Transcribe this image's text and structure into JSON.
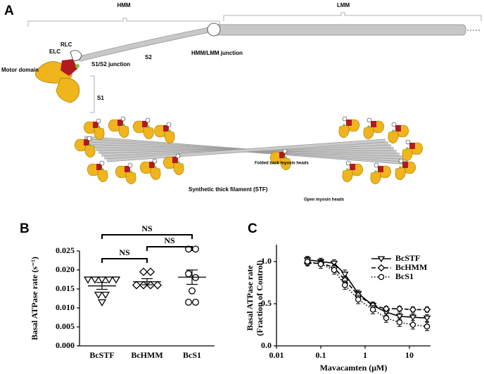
{
  "panel_labels": [
    "A",
    "B",
    "C"
  ],
  "diagram": {
    "labels": [
      "HMM",
      "LMM",
      "RLC",
      "ELC",
      "Motor domain",
      "S1/S2 junction",
      "S2",
      "HMM/LMM junction",
      "S1",
      "Folded back myosin heads",
      "Synthetic thick filament (STF)",
      "Open myosin heads"
    ]
  },
  "chart_data": [
    {
      "type": "dot",
      "y_label": "Basal ATPase rate (s⁻¹)",
      "categories": [
        "BcSTF",
        "BcHMM",
        "BcS1"
      ],
      "markers": [
        "triangle-down",
        "diamond",
        "circle"
      ],
      "groups": [
        [
          0.0175,
          0.0175,
          0.0175,
          0.0175,
          0.0175,
          0.0135,
          0.0135,
          0.0115
        ],
        [
          0.0195,
          0.0195,
          0.016,
          0.016,
          0.016,
          0.016
        ],
        [
          0.0255,
          0.0255,
          0.019,
          0.018,
          0.0145,
          0.0115,
          0.0115
        ]
      ],
      "means": [
        0.0158,
        0.0169,
        0.0181
      ],
      "errors": [
        0.0009,
        0.0008,
        0.0019
      ],
      "comparisons": [
        {
          "label": "NS",
          "pair": [
            0,
            1
          ]
        },
        {
          "label": "NS",
          "pair": [
            1,
            2
          ]
        },
        {
          "label": "NS",
          "pair": [
            0,
            2
          ]
        }
      ],
      "ylim": [
        0,
        0.025
      ],
      "yticks": [
        {
          "value": 0,
          "label": "0.000"
        },
        {
          "value": 0.005,
          "label": "0.005"
        },
        {
          "value": 0.01,
          "label": "0.010"
        },
        {
          "value": 0.015,
          "label": "0.015"
        },
        {
          "value": 0.02,
          "label": "0.020"
        },
        {
          "value": 0.025,
          "label": "0.025"
        }
      ]
    },
    {
      "type": "line",
      "log_x": true,
      "x_label": "Mavacamten (μM)",
      "y_label": [
        "Basal ATPase rate",
        "(Fraction of Control)"
      ],
      "x": [
        0.05,
        0.1,
        0.2,
        0.35,
        0.7,
        1.5,
        3,
        6,
        12,
        25
      ],
      "series": [
        {
          "name": "BcSTF",
          "marker": "triangle-down",
          "dash": "solid",
          "values": [
            1.02,
            1.0,
            0.98,
            0.85,
            0.62,
            0.48,
            0.4,
            0.35,
            0.34,
            0.33
          ],
          "errors": [
            0.04,
            0.04,
            0.04,
            0.05,
            0.04,
            0.04,
            0.04,
            0.04,
            0.04,
            0.04
          ]
        },
        {
          "name": "BcHMM",
          "marker": "diamond",
          "dash": "dashed",
          "values": [
            0.98,
            0.98,
            0.93,
            0.78,
            0.6,
            0.48,
            0.44,
            0.44,
            0.43,
            0.43
          ],
          "errors": [
            0.03,
            0.03,
            0.04,
            0.04,
            0.04,
            0.03,
            0.03,
            0.03,
            0.03,
            0.03
          ]
        },
        {
          "name": "BcS1",
          "marker": "circle",
          "dash": "dotted",
          "values": [
            1.0,
            0.97,
            0.9,
            0.72,
            0.55,
            0.43,
            0.33,
            0.28,
            0.25,
            0.23
          ],
          "errors": [
            0.05,
            0.05,
            0.05,
            0.05,
            0.05,
            0.05,
            0.05,
            0.05,
            0.05,
            0.05
          ]
        }
      ],
      "legend": "upper right",
      "xlim": [
        0.01,
        30
      ],
      "xticks": [
        0.01,
        0.1,
        1,
        10
      ],
      "ylim": [
        0,
        1.2
      ],
      "yticks": [
        {
          "value": 0,
          "label": "0.0"
        },
        {
          "value": 0.5,
          "label": "0.5"
        },
        {
          "value": 1,
          "label": "1.0"
        }
      ]
    }
  ]
}
